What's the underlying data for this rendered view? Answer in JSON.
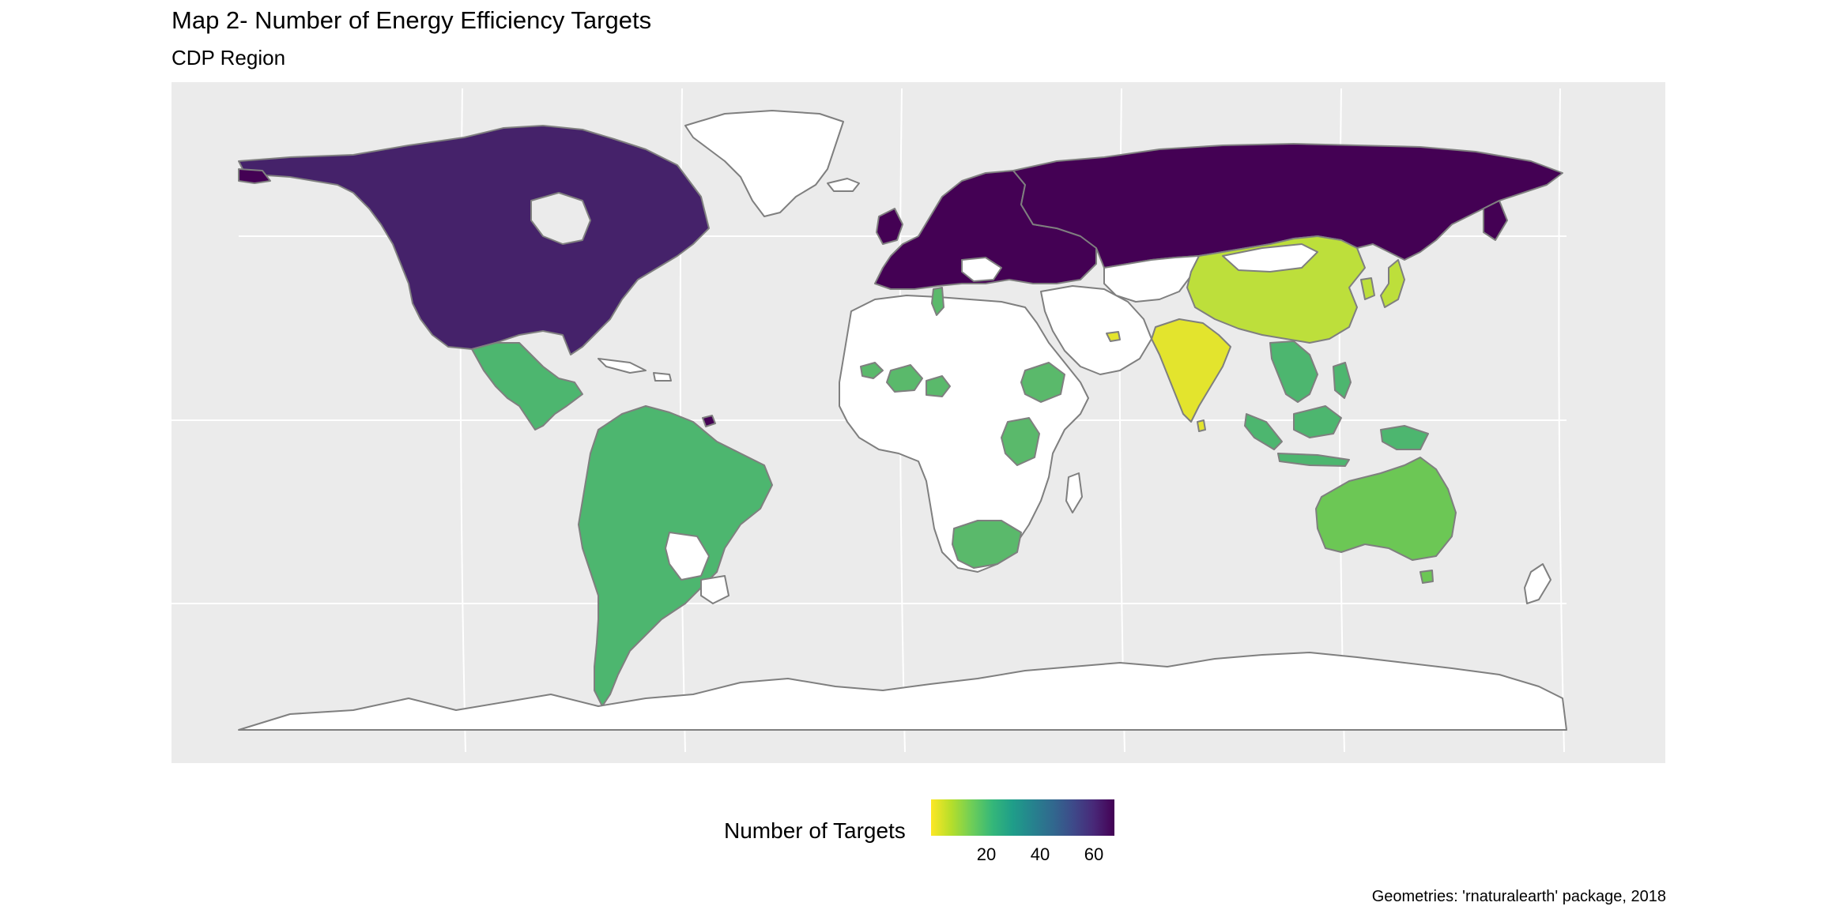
{
  "title": "Map 2- Number of Energy Efficiency Targets",
  "subtitle": "CDP Region",
  "legend": {
    "title": "Number of Targets",
    "ticks": [
      "20",
      "40",
      "60"
    ],
    "tick_values": [
      20,
      40,
      60
    ],
    "range": [
      1,
      70
    ],
    "palette": "viridis (reversed)"
  },
  "caption": "Geometries: 'rnaturalearth' package, 2018",
  "colors": {
    "panel_bg": "#ebebeb",
    "country_none": "#ffffff",
    "border": "#7f7f7f",
    "grid": "#ffffff"
  },
  "regions": [
    {
      "name": "North America",
      "count_level": 63,
      "color": "#45226a"
    },
    {
      "name": "Europe",
      "count_level": 70,
      "color": "#440154"
    },
    {
      "name": "Latin America",
      "count_level": 27,
      "color": "#4db66f"
    },
    {
      "name": "Africa",
      "count_level": 29,
      "color": "#5ab96b"
    },
    {
      "name": "China",
      "count_level": 12,
      "color": "#bddf3b"
    },
    {
      "name": "South Asia",
      "count_level": 3,
      "color": "#e3e42d"
    },
    {
      "name": "Southeast Asia",
      "count_level": 27,
      "color": "#4db66f"
    },
    {
      "name": "Oceania",
      "count_level": 22,
      "color": "#6cc755"
    }
  ]
}
